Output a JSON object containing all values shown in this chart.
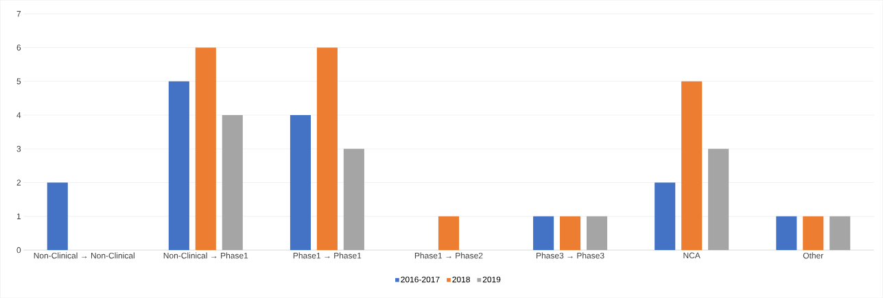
{
  "chart_data": {
    "type": "bar",
    "categories": [
      "Non-Clinical → Non-Clinical",
      "Non-Clinical → Phase1",
      "Phase1 → Phase1",
      "Phase1 → Phase2",
      "Phase3 → Phase3",
      "NCA",
      "Other"
    ],
    "series": [
      {
        "name": "2016-2017",
        "color": "#4472c4",
        "values": [
          2,
          5,
          4,
          0,
          1,
          2,
          1
        ]
      },
      {
        "name": "2018",
        "color": "#ed7d31",
        "values": [
          0,
          6,
          6,
          1,
          1,
          5,
          1
        ]
      },
      {
        "name": "2019",
        "color": "#a5a5a5",
        "values": [
          0,
          4,
          3,
          0,
          1,
          3,
          1
        ]
      }
    ],
    "ylim": [
      0,
      7
    ],
    "yticks": [
      0,
      1,
      2,
      3,
      4,
      5,
      6,
      7
    ],
    "grid": "y",
    "legend": "bottom"
  }
}
